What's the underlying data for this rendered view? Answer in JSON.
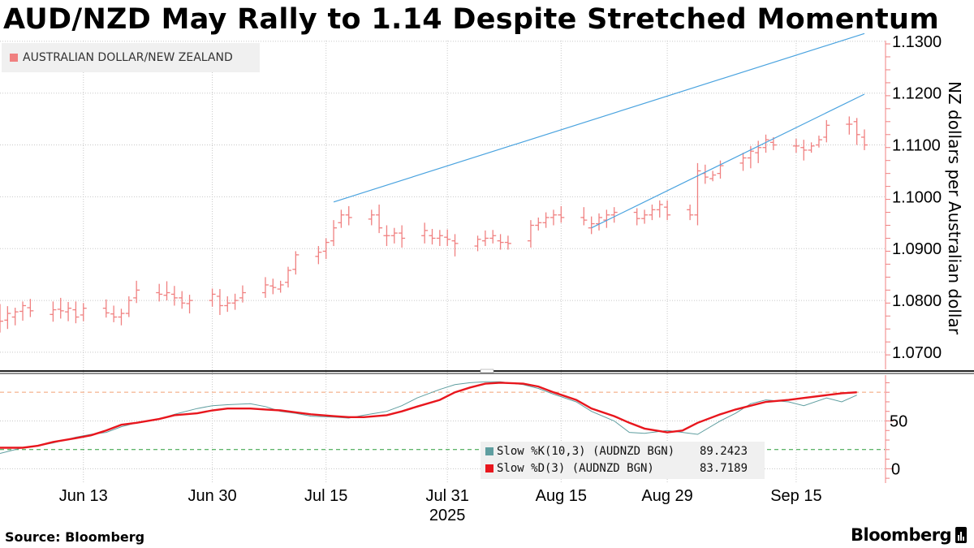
{
  "title": "AUD/NZD May Rally to 1.14 Despite Stretched Momentum",
  "source": "Source: Bloomberg",
  "brand": "Bloomberg",
  "colors": {
    "price_bars": "#f08080",
    "trendline": "#4aa3df",
    "slow_k": "#5f9ea0",
    "slow_d": "#e8161d",
    "upper_band_line": "#f2a074",
    "lower_band_line": "#2a9d3a",
    "grid": "#c8c8c8"
  },
  "chart_data": [
    {
      "type": "ohlc",
      "title": "AUD/NZD May Rally to 1.14 Despite Stretched Momentum",
      "ylabel": "NZ dollars per Australian dollar",
      "legend": [
        {
          "name": "AUSTRALIAN DOLLAR/NEW ZEALAND",
          "color": "#f08080"
        }
      ],
      "legend_position": "top-left",
      "grid": true,
      "ylim": [
        1.0667,
        1.1317
      ],
      "yticks": [
        "1.0700",
        "1.0800",
        "1.0900",
        "1.1000",
        "1.1100",
        "1.1200",
        "1.1300"
      ],
      "xticks": [
        "Jun 13",
        "Jun 30",
        "Jul 15",
        "Jul 31",
        "Aug 15",
        "Aug 29",
        "Sep 15"
      ],
      "xlabel_year": "2025",
      "x": [
        "2025-06-02",
        "2025-06-03",
        "2025-06-04",
        "2025-06-05",
        "2025-06-06",
        "2025-06-09",
        "2025-06-10",
        "2025-06-11",
        "2025-06-12",
        "2025-06-13",
        "2025-06-16",
        "2025-06-17",
        "2025-06-18",
        "2025-06-19",
        "2025-06-20",
        "2025-06-23",
        "2025-06-24",
        "2025-06-25",
        "2025-06-26",
        "2025-06-27",
        "2025-06-30",
        "2025-07-01",
        "2025-07-02",
        "2025-07-03",
        "2025-07-04",
        "2025-07-07",
        "2025-07-08",
        "2025-07-09",
        "2025-07-10",
        "2025-07-11",
        "2025-07-14",
        "2025-07-15",
        "2025-07-16",
        "2025-07-17",
        "2025-07-18",
        "2025-07-21",
        "2025-07-22",
        "2025-07-23",
        "2025-07-24",
        "2025-07-25",
        "2025-07-28",
        "2025-07-29",
        "2025-07-30",
        "2025-07-31",
        "2025-08-01",
        "2025-08-04",
        "2025-08-05",
        "2025-08-06",
        "2025-08-07",
        "2025-08-08",
        "2025-08-11",
        "2025-08-12",
        "2025-08-13",
        "2025-08-14",
        "2025-08-15",
        "2025-08-18",
        "2025-08-19",
        "2025-08-20",
        "2025-08-21",
        "2025-08-22",
        "2025-08-25",
        "2025-08-26",
        "2025-08-27",
        "2025-08-28",
        "2025-08-29",
        "2025-09-01",
        "2025-09-02",
        "2025-09-03",
        "2025-09-04",
        "2025-09-05",
        "2025-09-08",
        "2025-09-09",
        "2025-09-10",
        "2025-09-11",
        "2025-09-12",
        "2025-09-15",
        "2025-09-16",
        "2025-09-17",
        "2025-09-18",
        "2025-09-19",
        "2025-09-22",
        "2025-09-23",
        "2025-09-24"
      ],
      "ohlc": [
        [
          1.0775,
          1.0793,
          1.0738,
          1.076
        ],
        [
          1.0762,
          1.0789,
          1.0745,
          1.0775
        ],
        [
          1.0768,
          1.0786,
          1.0752,
          1.0778
        ],
        [
          1.0779,
          1.0798,
          1.0761,
          1.079
        ],
        [
          1.0786,
          1.0803,
          1.0768,
          1.078
        ],
        [
          1.0773,
          1.0798,
          1.0759,
          1.0782
        ],
        [
          1.0783,
          1.0805,
          1.0765,
          1.078
        ],
        [
          1.0778,
          1.0797,
          1.076,
          1.0785
        ],
        [
          1.0782,
          1.0798,
          1.0756,
          1.0768
        ],
        [
          1.0772,
          1.0795,
          1.076,
          1.0785
        ],
        [
          1.0785,
          1.0802,
          1.0767,
          1.0776
        ],
        [
          1.0774,
          1.079,
          1.0758,
          1.0768
        ],
        [
          1.0768,
          1.0784,
          1.0752,
          1.0775
        ],
        [
          1.0775,
          1.0808,
          1.0768,
          1.08
        ],
        [
          1.0805,
          1.0838,
          1.0795,
          1.082
        ],
        [
          1.0815,
          1.0832,
          1.0798,
          1.0812
        ],
        [
          1.081,
          1.0837,
          1.08,
          1.0815
        ],
        [
          1.0812,
          1.0828,
          1.079,
          1.0805
        ],
        [
          1.0805,
          1.0818,
          1.0784,
          1.0795
        ],
        [
          1.0794,
          1.0811,
          1.0775,
          1.08
        ],
        [
          1.08,
          1.0823,
          1.0788,
          1.0812
        ],
        [
          1.0808,
          1.0822,
          1.0772,
          1.079
        ],
        [
          1.079,
          1.0808,
          1.0778,
          1.0795
        ],
        [
          1.0795,
          1.0813,
          1.0782,
          1.08
        ],
        [
          1.0805,
          1.0829,
          1.0796,
          1.0815
        ],
        [
          1.0815,
          1.0845,
          1.0805,
          1.083
        ],
        [
          1.0828,
          1.0842,
          1.0812,
          1.0825
        ],
        [
          1.0822,
          1.0838,
          1.0815,
          1.083
        ],
        [
          1.0835,
          1.0865,
          1.0825,
          1.0858
        ],
        [
          1.086,
          1.0895,
          1.085,
          1.0888
        ],
        [
          1.0885,
          1.0905,
          1.087,
          1.0893
        ],
        [
          1.0895,
          1.092,
          1.088,
          1.0912
        ],
        [
          1.0915,
          1.0955,
          1.0905,
          1.094
        ],
        [
          1.095,
          1.0975,
          1.094,
          1.0965
        ],
        [
          1.0965,
          1.0982,
          1.0945,
          1.096
        ],
        [
          1.0957,
          1.0975,
          1.0945,
          1.0965
        ],
        [
          1.0965,
          1.0985,
          1.093,
          1.094
        ],
        [
          1.0925,
          1.0945,
          1.0905,
          1.0925
        ],
        [
          1.0925,
          1.094,
          1.091,
          1.093
        ],
        [
          1.093,
          1.0945,
          1.0902,
          1.092
        ],
        [
          1.0925,
          1.095,
          1.091,
          1.0935
        ],
        [
          1.0925,
          1.0938,
          1.0908,
          1.092
        ],
        [
          1.092,
          1.0936,
          1.0905,
          1.0925
        ],
        [
          1.0922,
          1.0937,
          1.0905,
          1.0918
        ],
        [
          1.0915,
          1.0928,
          1.0885,
          1.091
        ],
        [
          1.0905,
          1.0925,
          1.0895,
          1.0918
        ],
        [
          1.0915,
          1.0935,
          1.0905,
          1.092
        ],
        [
          1.092,
          1.0936,
          1.091,
          1.0925
        ],
        [
          1.0915,
          1.0928,
          1.0898,
          1.0912
        ],
        [
          1.0912,
          1.0925,
          1.0898,
          1.091
        ],
        [
          1.0915,
          1.0955,
          1.0902,
          1.0945
        ],
        [
          1.0945,
          1.096,
          1.0935,
          1.095
        ],
        [
          1.095,
          1.097,
          1.094,
          1.096
        ],
        [
          1.096,
          1.0975,
          1.0945,
          1.0965
        ],
        [
          1.0965,
          1.0982,
          1.095,
          1.096
        ],
        [
          1.096,
          1.098,
          1.0945,
          1.0955
        ],
        [
          1.094,
          1.0962,
          1.0928,
          1.0948
        ],
        [
          1.0948,
          1.0968,
          1.0935,
          1.096
        ],
        [
          1.0955,
          1.0975,
          1.094,
          1.0965
        ],
        [
          1.0965,
          1.098,
          1.095,
          1.097
        ],
        [
          1.097,
          1.0978,
          1.0945,
          1.0958
        ],
        [
          1.0958,
          1.0975,
          1.0948,
          1.0965
        ],
        [
          1.0965,
          1.0985,
          1.0955,
          1.0975
        ],
        [
          1.0975,
          1.0993,
          1.096,
          1.0985
        ],
        [
          1.098,
          1.0993,
          1.0955,
          1.0965
        ],
        [
          1.0975,
          1.0985,
          1.0955,
          1.0965
        ],
        [
          1.0965,
          1.1065,
          1.0945,
          1.105
        ],
        [
          1.1045,
          1.1062,
          1.1025,
          1.1038
        ],
        [
          1.1035,
          1.105,
          1.103,
          1.1042
        ],
        [
          1.1045,
          1.107,
          1.1035,
          1.106
        ],
        [
          1.1065,
          1.1085,
          1.105,
          1.1075
        ],
        [
          1.1075,
          1.1098,
          1.1055,
          1.1088
        ],
        [
          1.1085,
          1.1108,
          1.1065,
          1.1095
        ],
        [
          1.1095,
          1.112,
          1.1085,
          1.111
        ],
        [
          1.1105,
          1.1115,
          1.109,
          1.11
        ],
        [
          1.1098,
          1.1112,
          1.1085,
          1.1098
        ],
        [
          1.1095,
          1.111,
          1.107,
          1.109
        ],
        [
          1.109,
          1.1105,
          1.1085,
          1.1098
        ],
        [
          1.11,
          1.1118,
          1.1095,
          1.111
        ],
        [
          1.1115,
          1.1148,
          1.1105,
          1.1138
        ],
        [
          1.114,
          1.1155,
          1.112,
          1.114
        ],
        [
          1.1145,
          1.1152,
          1.11,
          1.112
        ],
        [
          1.1115,
          1.113,
          1.109,
          1.11
        ]
      ],
      "trendlines": [
        {
          "points": [
            [
              "2025-07-16",
              1.099
            ],
            [
              "2025-09-24",
              1.1315
            ]
          ]
        },
        {
          "points": [
            [
              "2025-08-19",
              1.094
            ],
            [
              "2025-09-24",
              1.1198
            ]
          ]
        }
      ]
    },
    {
      "type": "line",
      "indicator": "Slow Stochastic",
      "ylim": [
        -15,
        98
      ],
      "yticks": [
        "0",
        "50"
      ],
      "reference_lines": [
        80,
        20
      ],
      "grid": true,
      "series": [
        {
          "name": "Slow %K(10,3) (AUDNZD BGN)",
          "last_value": "89.2423",
          "color": "#5f9ea0"
        },
        {
          "name": "Slow %D(3) (AUDNZD BGN)",
          "last_value": "83.7189",
          "color": "#e8161d"
        }
      ],
      "x_days": [
        0,
        3,
        5,
        7,
        10,
        12,
        14,
        16,
        18,
        21,
        23,
        26,
        28,
        30,
        33,
        35,
        37,
        39,
        41,
        44,
        46,
        48,
        51,
        53,
        55,
        58,
        60,
        62,
        64,
        66,
        69,
        71,
        73,
        76,
        78,
        81,
        83,
        85,
        88,
        90,
        92,
        95,
        97,
        99,
        101,
        104,
        106,
        109,
        111,
        113
      ],
      "slow_k": [
        16,
        22,
        24,
        27,
        33,
        36,
        38,
        44,
        48,
        52,
        57,
        63,
        66,
        67,
        68,
        65,
        60,
        58,
        55,
        54,
        53,
        56,
        60,
        66,
        74,
        83,
        88,
        90,
        91,
        91,
        88,
        84,
        78,
        70,
        60,
        50,
        38,
        37,
        40,
        38,
        36,
        50,
        58,
        68,
        72,
        70,
        66,
        74,
        70,
        77
      ],
      "slow_d": [
        22,
        22,
        24,
        28,
        32,
        35,
        40,
        46,
        48,
        52,
        56,
        58,
        61,
        63,
        63,
        62,
        61,
        59,
        57,
        55,
        54,
        54,
        56,
        60,
        65,
        72,
        80,
        85,
        89,
        90,
        89,
        86,
        80,
        72,
        63,
        55,
        48,
        42,
        38,
        40,
        48,
        57,
        62,
        66,
        70,
        72,
        74,
        77,
        79,
        80
      ]
    }
  ]
}
